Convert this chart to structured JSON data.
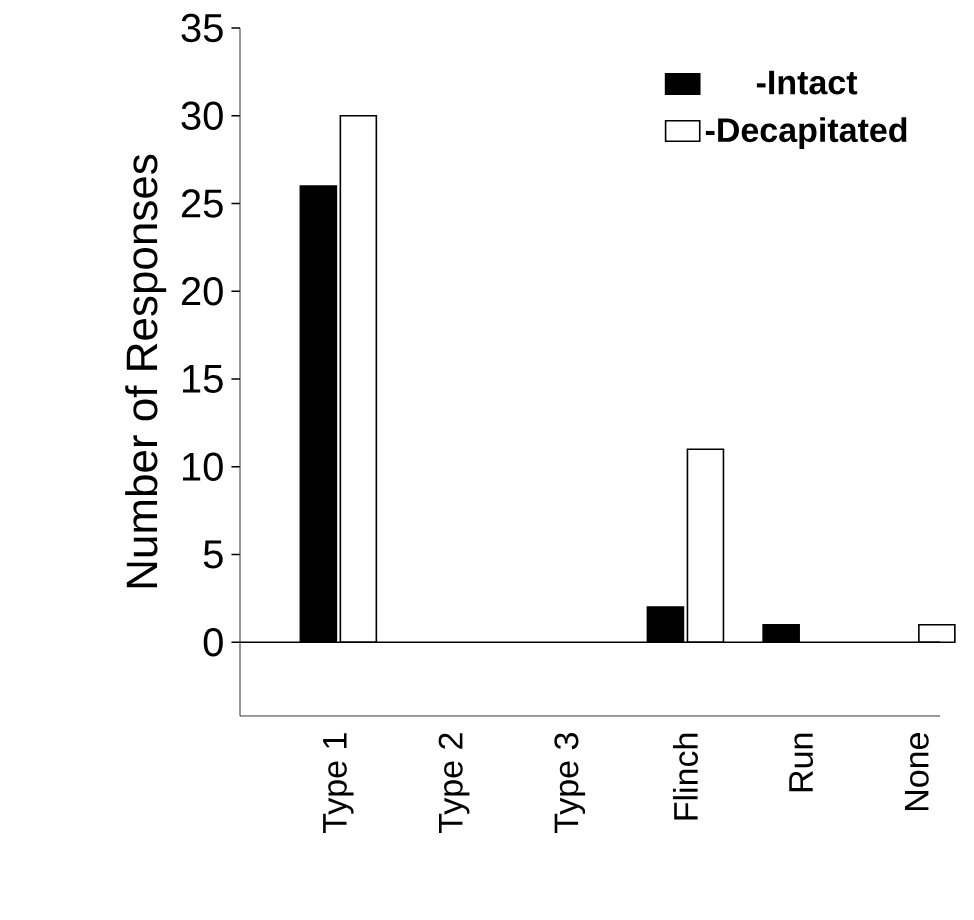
{
  "chart_data": {
    "type": "bar",
    "ylabel": "Number of Responses",
    "categories": [
      "Type 1",
      "Type 2",
      "Type 3",
      "Flinch",
      "Run",
      "None"
    ],
    "series": [
      {
        "name": "-Intact",
        "color": "#000000",
        "values": [
          26,
          0,
          0,
          2,
          1,
          0
        ]
      },
      {
        "name": "-Decapitated",
        "color": "#ffffff",
        "values": [
          30,
          0,
          0,
          11,
          0,
          1
        ]
      }
    ],
    "ylim": [
      -4.2,
      35
    ],
    "yticks": [
      0,
      5,
      10,
      15,
      20,
      25,
      30,
      35
    ],
    "ref_lines": [
      {
        "axis": "y",
        "value": 0
      }
    ],
    "legend": "top right",
    "grid": false
  }
}
